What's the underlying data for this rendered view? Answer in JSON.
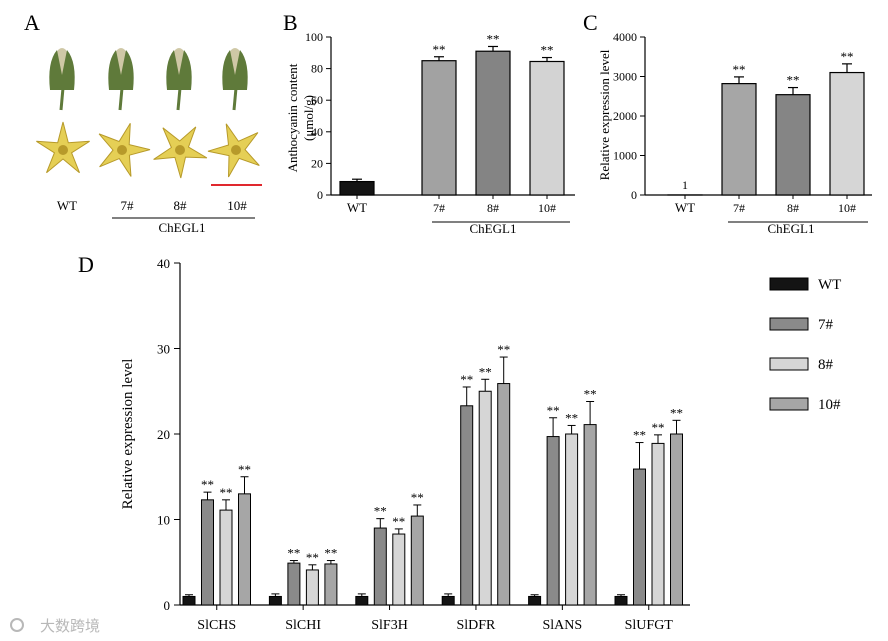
{
  "panels": {
    "A": {
      "letter": "A",
      "labels": [
        "WT",
        "7#",
        "8#",
        "10#"
      ],
      "group_label": "ChEGL1"
    },
    "B": {
      "letter": "B",
      "ylabel_line1": "Anthocyanin content",
      "ylabel_line2": "(μmol/g)",
      "group_label": "ChEGL1"
    },
    "C": {
      "letter": "C",
      "ylabel": "Relative expression level",
      "group_label": "ChEGL1"
    },
    "D": {
      "letter": "D"
    }
  },
  "watermark": "大数跨境",
  "colors": {
    "WT": "#141414",
    "7#": "#8a8a8a",
    "8#": "#d6d6d6",
    "10#": "#a6a6a6",
    "B_7#": "#a2a2a2",
    "B_8#": "#848484",
    "B_10#": "#d3d3d3",
    "C_7#": "#a6a6a6",
    "C_8#": "#858585",
    "C_10#": "#d6d6d6",
    "scalebar": "#e0282e",
    "petal": "#e5cf55",
    "petal_vein": "#b79a2a",
    "sepal": "#5f7a3a",
    "bud": "#cfc8a6"
  },
  "chart_data": [
    {
      "id": "B",
      "type": "bar",
      "categories": [
        "WT",
        "7#",
        "8#",
        "10#"
      ],
      "values": [
        8.5,
        85,
        91,
        84.5
      ],
      "errors": [
        1.5,
        2.5,
        3,
        2.5
      ],
      "significance": [
        "",
        "**",
        "**",
        "**"
      ],
      "xlabel": "ChEGL1",
      "ylabel": "Anthocyanin content (μmol/g)",
      "ylim": [
        0,
        100
      ],
      "yticks": [
        0,
        20,
        40,
        60,
        80,
        100
      ]
    },
    {
      "id": "C",
      "type": "bar",
      "categories": [
        "WT",
        "7#",
        "8#",
        "10#"
      ],
      "values": [
        1,
        2820,
        2540,
        3100
      ],
      "errors": [
        0,
        170,
        180,
        220
      ],
      "significance": [
        "",
        "**",
        "**",
        "**"
      ],
      "bar_labels": [
        "1",
        "",
        "",
        ""
      ],
      "xlabel": "ChEGL1",
      "ylabel": "Relative expression level",
      "ylim": [
        0,
        4000
      ],
      "yticks": [
        0,
        1000,
        2000,
        3000,
        4000
      ]
    },
    {
      "id": "D",
      "type": "bar",
      "categories": [
        "SlCHS",
        "SlCHI",
        "SlF3H",
        "SlDFR",
        "SlANS",
        "SlUFGT"
      ],
      "series": [
        {
          "name": "WT",
          "values": [
            1,
            1,
            1,
            1,
            1,
            1
          ],
          "errors": [
            0.2,
            0.3,
            0.3,
            0.3,
            0.2,
            0.2
          ]
        },
        {
          "name": "7#",
          "values": [
            12.3,
            4.9,
            9.0,
            23.3,
            19.7,
            15.9
          ],
          "errors": [
            0.9,
            0.3,
            1.1,
            2.2,
            2.2,
            3.1
          ]
        },
        {
          "name": "8#",
          "values": [
            11.1,
            4.1,
            8.3,
            25.0,
            20.0,
            18.9
          ],
          "errors": [
            1.2,
            0.6,
            0.6,
            1.4,
            1.0,
            1.0
          ]
        },
        {
          "name": "10#",
          "values": [
            13.0,
            4.8,
            10.4,
            25.9,
            21.1,
            20.0
          ],
          "errors": [
            2.0,
            0.4,
            1.3,
            3.1,
            2.7,
            1.6
          ]
        }
      ],
      "significance": [
        "",
        "**",
        "**",
        "**"
      ],
      "ylabel": "Relative expression level",
      "ylim": [
        0,
        40
      ],
      "yticks": [
        0,
        10,
        20,
        30,
        40
      ],
      "legend": [
        "WT",
        "7#",
        "8#",
        "10#"
      ],
      "legend_position": "top-right"
    }
  ]
}
